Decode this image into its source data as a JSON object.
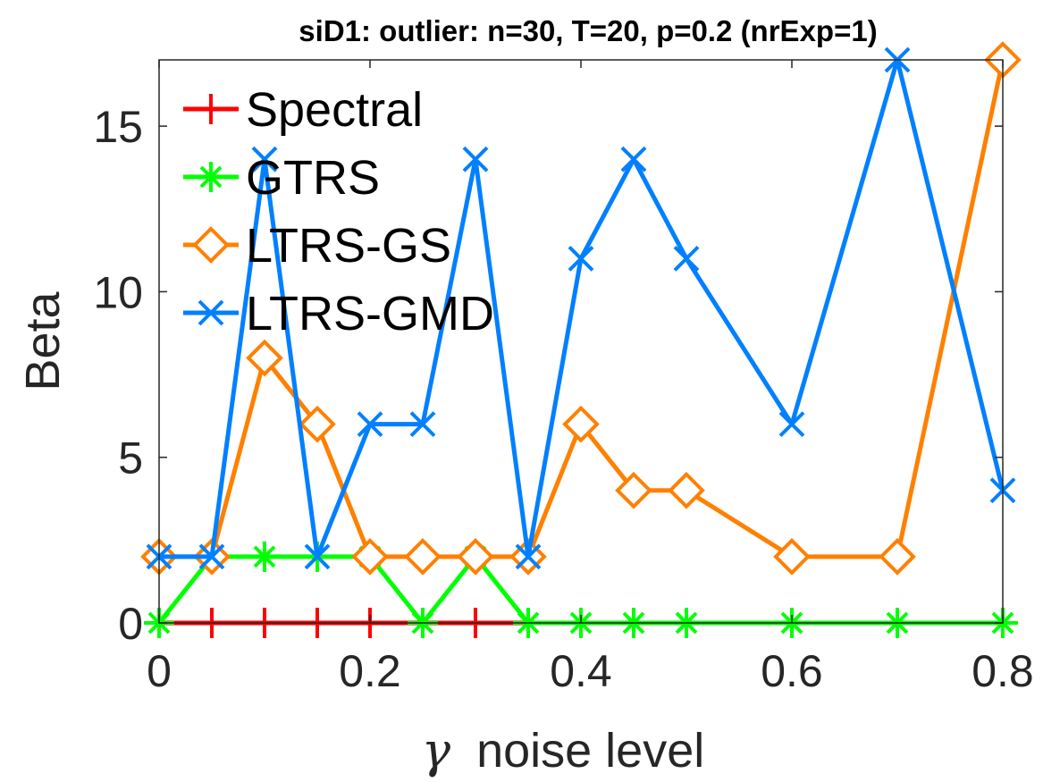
{
  "chart_data": {
    "type": "line",
    "title": "siD1: outlier: n=30, T=20, p=0.2 (nrExp=1)",
    "xlabel_symbol": "γ",
    "xlabel": "noise level",
    "ylabel": "Beta",
    "xlim": [
      0,
      0.8
    ],
    "ylim": [
      0,
      17
    ],
    "xticks": [
      0,
      0.2,
      0.4,
      0.6,
      0.8
    ],
    "xtick_labels": [
      "0",
      "0.2",
      "0.4",
      "0.6",
      "0.8"
    ],
    "yticks": [
      0,
      5,
      10,
      15
    ],
    "ytick_labels": [
      "0",
      "5",
      "10",
      "15"
    ],
    "grid": false,
    "legend_position": "top-left",
    "series": [
      {
        "name": "Spectral",
        "color": "#ff0000",
        "marker": "plus",
        "x": [
          0,
          0.05,
          0.1,
          0.15,
          0.2,
          0.25,
          0.3,
          0.35
        ],
        "y": [
          0,
          0,
          0,
          0,
          0,
          0,
          0,
          0
        ]
      },
      {
        "name": "GTRS",
        "color": "#00ff00",
        "marker": "star",
        "x": [
          0,
          0.05,
          0.1,
          0.15,
          0.2,
          0.25,
          0.3,
          0.35,
          0.4,
          0.45,
          0.5,
          0.6,
          0.7,
          0.8
        ],
        "y": [
          0,
          2,
          2,
          2,
          2,
          0,
          2,
          0,
          0,
          0,
          0,
          0,
          0,
          0
        ]
      },
      {
        "name": "LTRS-GS",
        "color": "#ff8000",
        "marker": "diamond",
        "x": [
          0,
          0.05,
          0.1,
          0.15,
          0.2,
          0.25,
          0.3,
          0.35,
          0.4,
          0.45,
          0.5,
          0.6,
          0.7,
          0.8
        ],
        "y": [
          2,
          2,
          8,
          6,
          2,
          2,
          2,
          2,
          6,
          4,
          4,
          2,
          2,
          17
        ]
      },
      {
        "name": "LTRS-GMD",
        "color": "#0080ff",
        "marker": "x",
        "x": [
          0,
          0.05,
          0.1,
          0.15,
          0.2,
          0.25,
          0.3,
          0.35,
          0.4,
          0.45,
          0.5,
          0.6,
          0.7,
          0.8
        ],
        "y": [
          2,
          2,
          14,
          2,
          6,
          6,
          14,
          2,
          11,
          14,
          11,
          6,
          17,
          4
        ]
      }
    ]
  }
}
